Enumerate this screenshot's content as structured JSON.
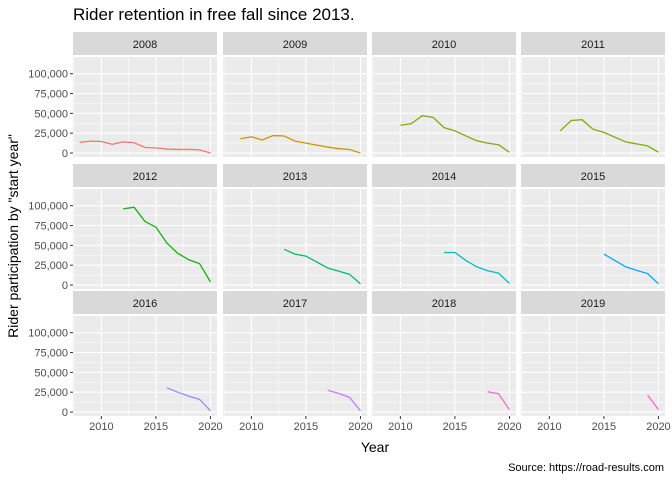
{
  "chart_data": {
    "type": "line",
    "layout": "facet_wrap",
    "title": "Rider retention in free fall since 2013.",
    "xlabel": "Year",
    "ylabel": "Rider participation by \"start year\"",
    "caption": "Source: https://road-results.com",
    "xlim": [
      2007.4,
      2020.6
    ],
    "ylim": [
      -5000,
      121000
    ],
    "x_ticks": [
      2010,
      2015,
      2020
    ],
    "y_ticks": [
      0,
      25000,
      50000,
      75000,
      100000
    ],
    "y_tick_labels": [
      "0",
      "25,000",
      "50,000",
      "75,000",
      "100,000"
    ],
    "grid": true,
    "legend": "none",
    "series": [
      {
        "name": "2008",
        "color": "#F8766D",
        "x": [
          2008,
          2009,
          2010,
          2011,
          2012,
          2013,
          2014,
          2015,
          2016,
          2017,
          2018,
          2019,
          2020
        ],
        "y": [
          13500,
          15000,
          14500,
          11000,
          14000,
          13000,
          7000,
          6500,
          5000,
          4500,
          4500,
          4000,
          0
        ]
      },
      {
        "name": "2009",
        "color": "#CD9600",
        "x": [
          2009,
          2010,
          2011,
          2012,
          2013,
          2014,
          2015,
          2016,
          2017,
          2018,
          2019,
          2020
        ],
        "y": [
          18000,
          20500,
          16500,
          22000,
          21500,
          15000,
          12500,
          10000,
          7500,
          5500,
          4500,
          0
        ]
      },
      {
        "name": "2010",
        "color": "#7CAE00",
        "x": [
          2010,
          2011,
          2012,
          2013,
          2014,
          2015,
          2016,
          2017,
          2018,
          2019,
          2020
        ],
        "y": [
          35000,
          37000,
          47000,
          45000,
          32000,
          28000,
          21500,
          15500,
          12500,
          10500,
          1000
        ]
      },
      {
        "name": "2011",
        "color": "#7CAE00",
        "x": [
          2011,
          2012,
          2013,
          2014,
          2015,
          2016,
          2017,
          2018,
          2019,
          2020
        ],
        "y": [
          28000,
          41000,
          42000,
          30000,
          26000,
          20000,
          14000,
          11500,
          9000,
          1000
        ]
      },
      {
        "name": "2012",
        "color": "#0CB702",
        "x": [
          2012,
          2013,
          2014,
          2015,
          2016,
          2017,
          2018,
          2019,
          2020
        ],
        "y": [
          96000,
          98000,
          80000,
          73000,
          53000,
          40000,
          32000,
          27000,
          4000
        ]
      },
      {
        "name": "2013",
        "color": "#00BE67",
        "x": [
          2013,
          2014,
          2015,
          2016,
          2017,
          2018,
          2019,
          2020
        ],
        "y": [
          45000,
          39000,
          36500,
          29000,
          21500,
          17500,
          13500,
          1500
        ]
      },
      {
        "name": "2014",
        "color": "#00BFC4",
        "x": [
          2014,
          2015,
          2016,
          2017,
          2018,
          2019,
          2020
        ],
        "y": [
          41000,
          41000,
          31000,
          23000,
          18000,
          15000,
          2000
        ]
      },
      {
        "name": "2015",
        "color": "#00A9FF",
        "x": [
          2015,
          2016,
          2017,
          2018,
          2019,
          2020
        ],
        "y": [
          39000,
          31000,
          23000,
          18500,
          14500,
          1500
        ]
      },
      {
        "name": "2016",
        "color": "#8494FF",
        "x": [
          2016,
          2017,
          2018,
          2019,
          2020
        ],
        "y": [
          30500,
          25000,
          20000,
          16000,
          1500
        ]
      },
      {
        "name": "2017",
        "color": "#C77CFF",
        "x": [
          2017,
          2018,
          2019,
          2020
        ],
        "y": [
          27500,
          23500,
          18500,
          1500
        ]
      },
      {
        "name": "2018",
        "color": "#FF61CC",
        "x": [
          2018,
          2019,
          2020
        ],
        "y": [
          25500,
          23000,
          3000
        ]
      },
      {
        "name": "2019",
        "color": "#FF61CC",
        "x": [
          2019,
          2020
        ],
        "y": [
          21500,
          3000
        ]
      }
    ]
  }
}
